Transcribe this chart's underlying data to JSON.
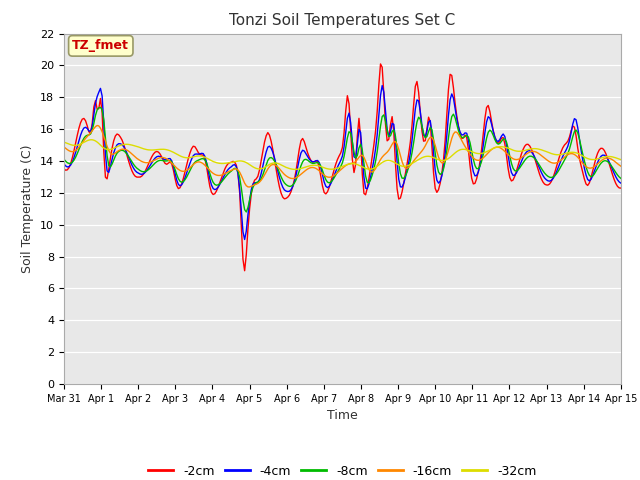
{
  "title": "Tonzi Soil Temperatures Set C",
  "xlabel": "Time",
  "ylabel": "Soil Temperature (C)",
  "ylim": [
    0,
    22
  ],
  "yticks": [
    0,
    2,
    4,
    6,
    8,
    10,
    12,
    14,
    16,
    18,
    20,
    22
  ],
  "fig_bg": "#ffffff",
  "plot_bg": "#e8e8e8",
  "annotation_text": "TZ_fmet",
  "annotation_color": "#cc0000",
  "annotation_bg": "#ffffcc",
  "series_colors": [
    "#ff0000",
    "#0000ff",
    "#00bb00",
    "#ff8800",
    "#dddd00"
  ],
  "series_labels": [
    "-2cm",
    "-4cm",
    "-8cm",
    "-16cm",
    "-32cm"
  ],
  "x_tick_labels": [
    "Mar 31",
    "Apr 1",
    "Apr 2",
    "Apr 3",
    "Apr 4",
    "Apr 5",
    "Apr 6",
    "Apr 7",
    "Apr 8",
    "Apr 9",
    "Apr 10",
    "Apr 11",
    "Apr 12",
    "Apr 13",
    "Apr 14",
    "Apr 15"
  ],
  "n_points": 337
}
